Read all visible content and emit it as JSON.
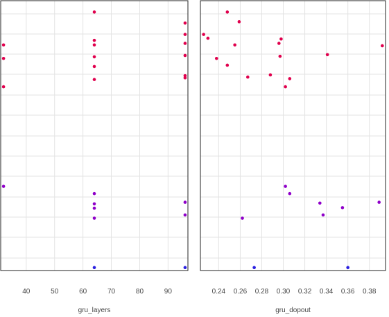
{
  "chart_data": [
    {
      "type": "scatter",
      "title": "",
      "xlabel": "gru_layers",
      "ylabel": "",
      "xlim": [
        31,
        97
      ],
      "ylim": [
        0,
        1
      ],
      "xticks": [
        40,
        50,
        60,
        70,
        80,
        90
      ],
      "grid": true,
      "points": [
        {
          "x": 32,
          "y": 0.836,
          "color": "#e0004d"
        },
        {
          "x": 32,
          "y": 0.786,
          "color": "#e0004d"
        },
        {
          "x": 32,
          "y": 0.681,
          "color": "#e0004d"
        },
        {
          "x": 32,
          "y": 0.312,
          "color": "#8f00c9"
        },
        {
          "x": 64,
          "y": 0.958,
          "color": "#e0004d"
        },
        {
          "x": 64,
          "y": 0.853,
          "color": "#e0004d"
        },
        {
          "x": 64,
          "y": 0.836,
          "color": "#e0004d"
        },
        {
          "x": 64,
          "y": 0.792,
          "color": "#e0004d"
        },
        {
          "x": 64,
          "y": 0.756,
          "color": "#e0004d"
        },
        {
          "x": 64,
          "y": 0.708,
          "color": "#e0004d"
        },
        {
          "x": 64,
          "y": 0.285,
          "color": "#8f00c9"
        },
        {
          "x": 64,
          "y": 0.247,
          "color": "#8f00c9"
        },
        {
          "x": 64,
          "y": 0.231,
          "color": "#8f00c9"
        },
        {
          "x": 64,
          "y": 0.194,
          "color": "#8f00c9"
        },
        {
          "x": 64,
          "y": 0.011,
          "color": "#2a1fe0"
        },
        {
          "x": 96,
          "y": 0.917,
          "color": "#e0004d"
        },
        {
          "x": 96,
          "y": 0.875,
          "color": "#e0004d"
        },
        {
          "x": 96,
          "y": 0.842,
          "color": "#e0004d"
        },
        {
          "x": 96,
          "y": 0.797,
          "color": "#e0004d"
        },
        {
          "x": 96,
          "y": 0.722,
          "color": "#e0004d"
        },
        {
          "x": 96,
          "y": 0.714,
          "color": "#e0004d"
        },
        {
          "x": 96,
          "y": 0.253,
          "color": "#8f00c9"
        },
        {
          "x": 96,
          "y": 0.206,
          "color": "#8f00c9"
        },
        {
          "x": 96,
          "y": 0.011,
          "color": "#2a1fe0"
        }
      ]
    },
    {
      "type": "scatter",
      "title": "",
      "xlabel": "gru_dopout",
      "ylabel": "",
      "xlim": [
        0.223,
        0.395
      ],
      "ylim": [
        0,
        1
      ],
      "xticks": [
        0.24,
        0.26,
        0.28,
        0.3,
        0.32,
        0.34,
        0.36,
        0.38
      ],
      "xtick_labels": [
        "0.24",
        "0.26",
        "0.28",
        "0.30",
        "0.32",
        "0.34",
        "0.36",
        "0.38"
      ],
      "grid": true,
      "points": [
        {
          "x": 0.226,
          "y": 0.875,
          "color": "#e0004d"
        },
        {
          "x": 0.23,
          "y": 0.861,
          "color": "#e0004d"
        },
        {
          "x": 0.238,
          "y": 0.786,
          "color": "#e0004d"
        },
        {
          "x": 0.248,
          "y": 0.958,
          "color": "#e0004d"
        },
        {
          "x": 0.248,
          "y": 0.761,
          "color": "#e0004d"
        },
        {
          "x": 0.255,
          "y": 0.836,
          "color": "#e0004d"
        },
        {
          "x": 0.259,
          "y": 0.922,
          "color": "#e0004d"
        },
        {
          "x": 0.267,
          "y": 0.717,
          "color": "#e0004d"
        },
        {
          "x": 0.288,
          "y": 0.725,
          "color": "#e0004d"
        },
        {
          "x": 0.296,
          "y": 0.842,
          "color": "#e0004d"
        },
        {
          "x": 0.297,
          "y": 0.794,
          "color": "#e0004d"
        },
        {
          "x": 0.298,
          "y": 0.858,
          "color": "#e0004d"
        },
        {
          "x": 0.302,
          "y": 0.681,
          "color": "#e0004d"
        },
        {
          "x": 0.306,
          "y": 0.711,
          "color": "#e0004d"
        },
        {
          "x": 0.341,
          "y": 0.8,
          "color": "#e0004d"
        },
        {
          "x": 0.392,
          "y": 0.833,
          "color": "#e0004d"
        },
        {
          "x": 0.262,
          "y": 0.194,
          "color": "#8f00c9"
        },
        {
          "x": 0.302,
          "y": 0.312,
          "color": "#8f00c9"
        },
        {
          "x": 0.306,
          "y": 0.285,
          "color": "#8f00c9"
        },
        {
          "x": 0.334,
          "y": 0.25,
          "color": "#8f00c9"
        },
        {
          "x": 0.337,
          "y": 0.206,
          "color": "#8f00c9"
        },
        {
          "x": 0.355,
          "y": 0.233,
          "color": "#8f00c9"
        },
        {
          "x": 0.389,
          "y": 0.253,
          "color": "#8f00c9"
        },
        {
          "x": 0.273,
          "y": 0.011,
          "color": "#2a1fe0"
        },
        {
          "x": 0.36,
          "y": 0.011,
          "color": "#2a1fe0"
        }
      ]
    }
  ]
}
